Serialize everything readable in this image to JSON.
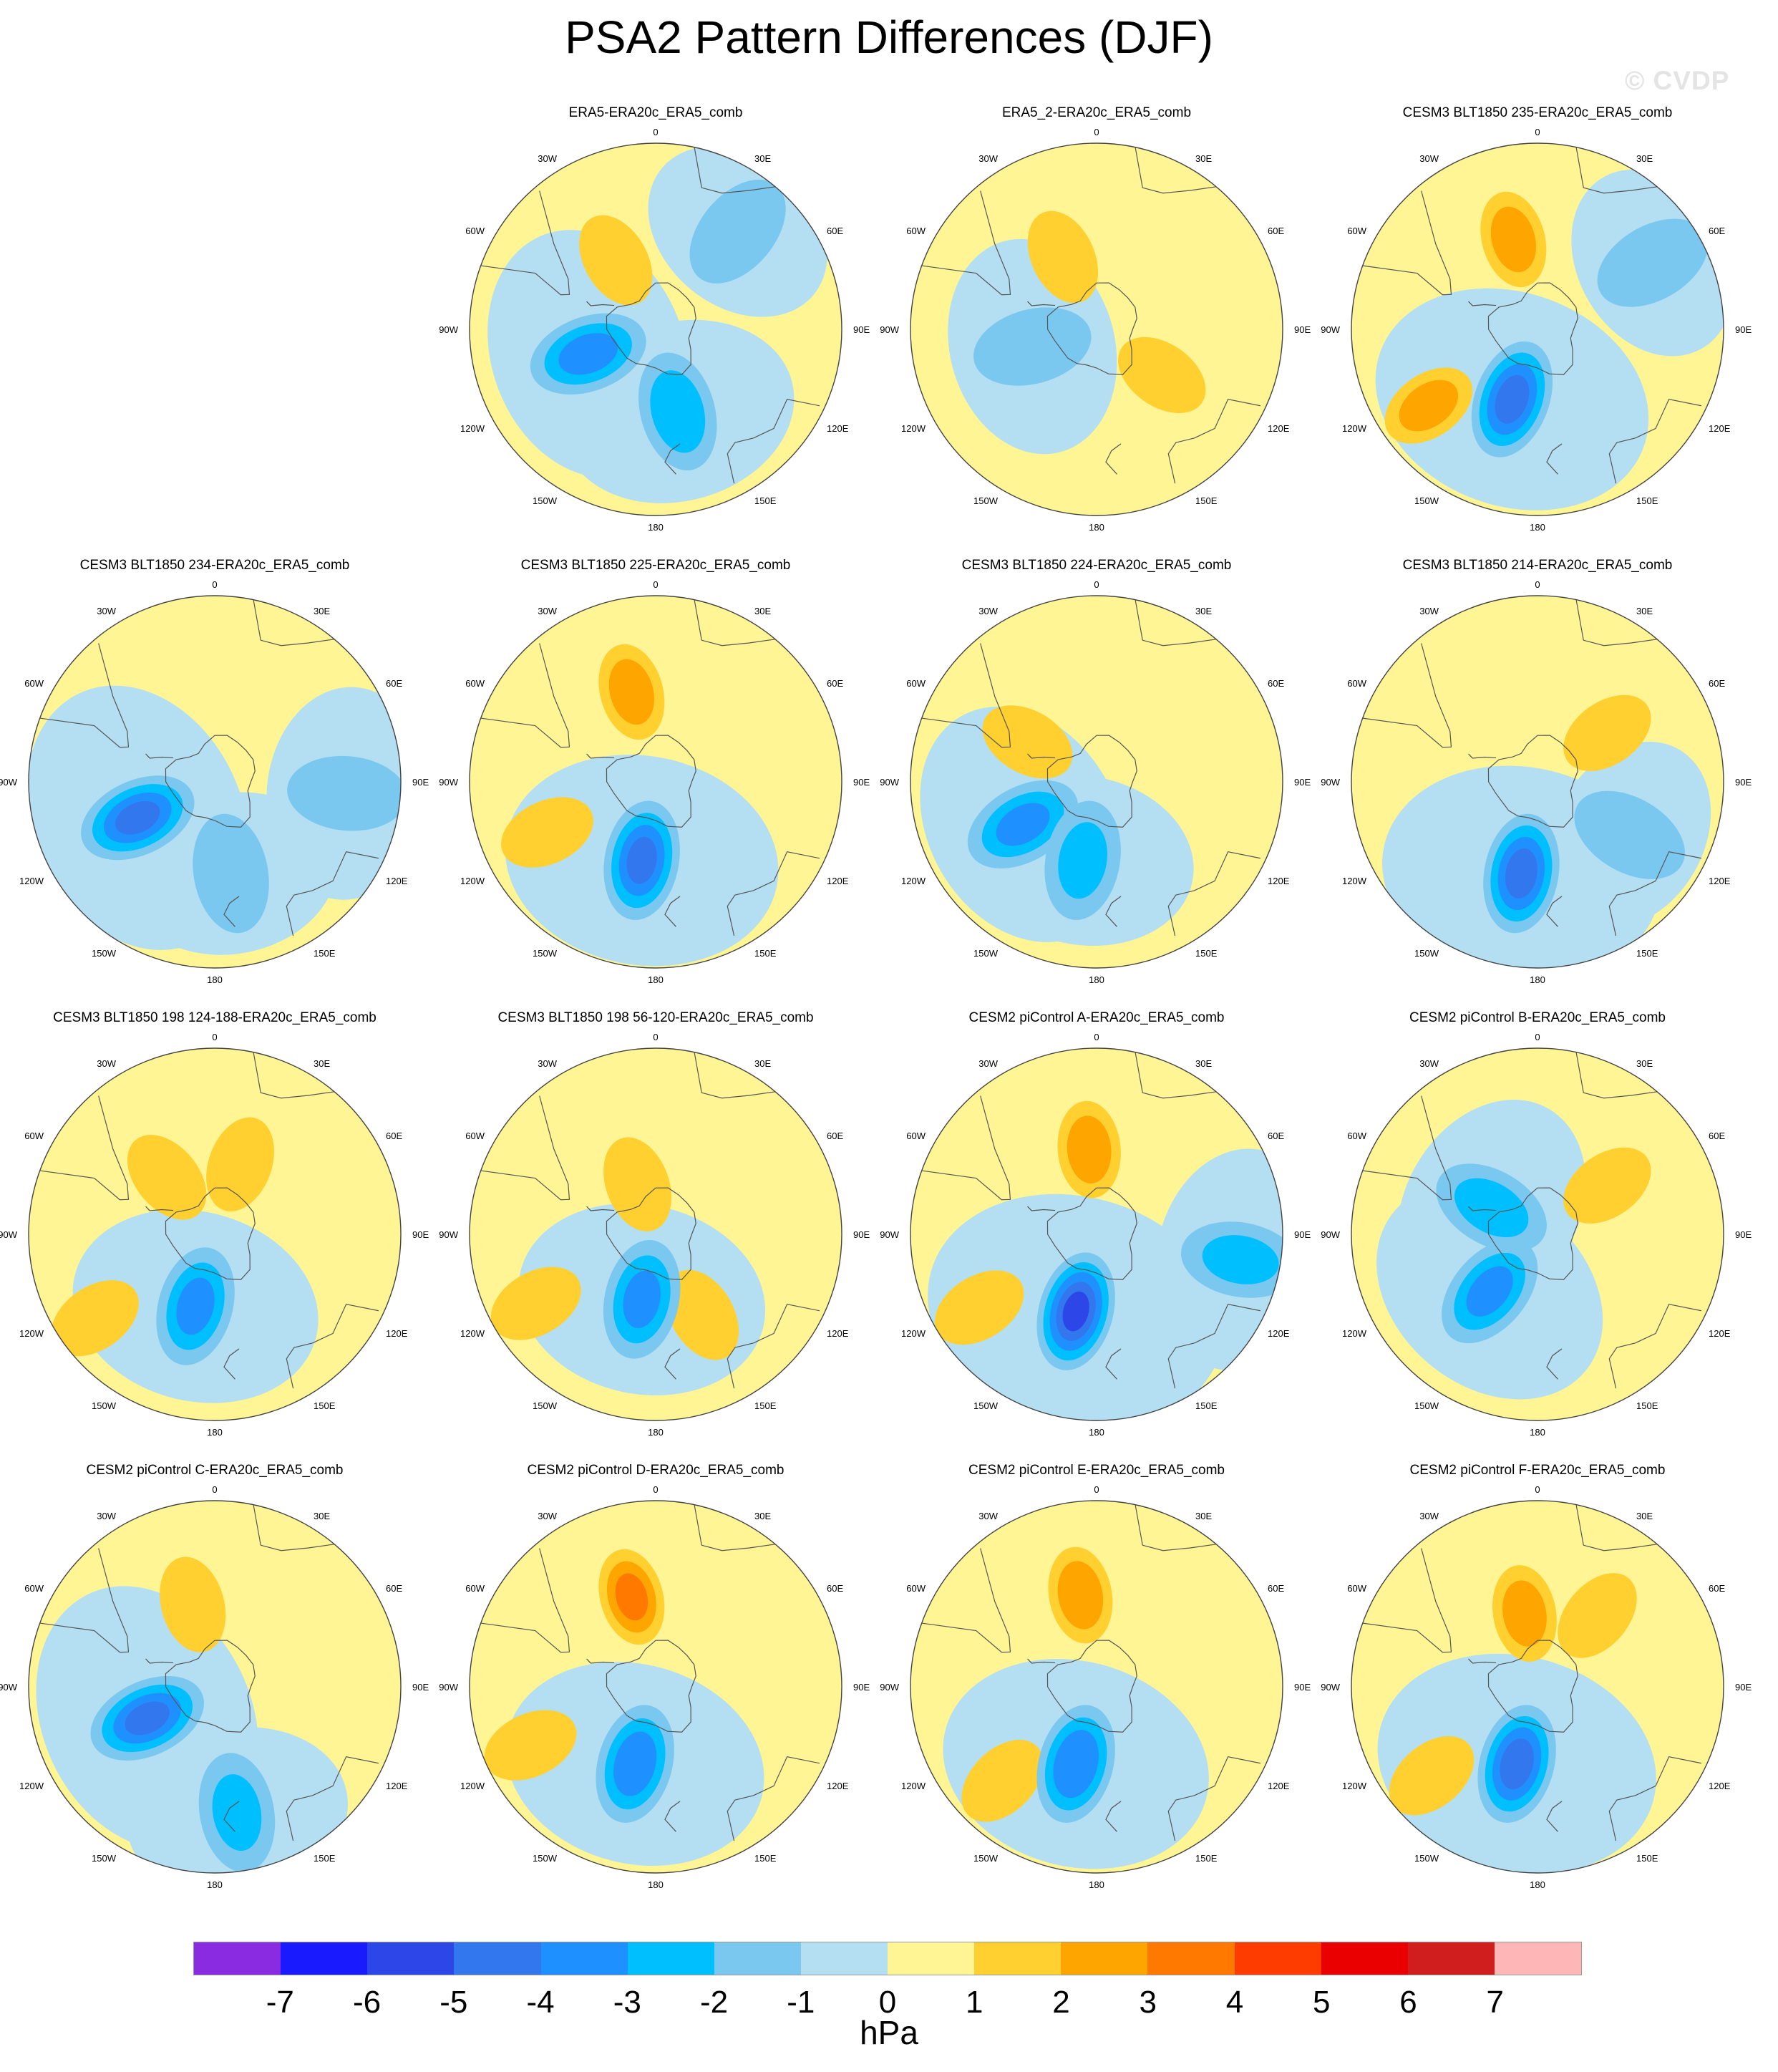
{
  "title": "PSA2 Pattern Differences (DJF)",
  "watermark": "© CVDP",
  "lon_labels": [
    "0",
    "30E",
    "60E",
    "90E",
    "120E",
    "150E",
    "180",
    "150W",
    "120W",
    "90W",
    "60W",
    "30W"
  ],
  "panels": [
    {
      "title": "ERA5-ERA20c_ERA5_comb",
      "blobs": [
        {
          "sign": "+",
          "max": 1.5,
          "lon": 330,
          "lat": 60
        },
        {
          "sign": "-",
          "max": 3.2,
          "lon": 250,
          "lat": 63
        },
        {
          "sign": "-",
          "max": 2.5,
          "lon": 165,
          "lat": 58
        },
        {
          "sign": "-",
          "max": 1,
          "lon": 40,
          "lat": 42
        }
      ]
    },
    {
      "title": "ERA5_2-ERA20c_ERA5_comb",
      "blobs": [
        {
          "sign": "+",
          "max": 1.4,
          "lon": 335,
          "lat": 60
        },
        {
          "sign": "+",
          "max": 1.4,
          "lon": 125,
          "lat": 60
        },
        {
          "sign": "-",
          "max": 1.8,
          "lon": 255,
          "lat": 65
        }
      ]
    },
    {
      "title": "CESM3 BLT1850 235-ERA20c_ERA5_comb",
      "blobs": [
        {
          "sign": "+",
          "max": 2.3,
          "lon": 345,
          "lat": 55
        },
        {
          "sign": "+",
          "max": 2.2,
          "lon": 235,
          "lat": 40
        },
        {
          "sign": "-",
          "max": 4.2,
          "lon": 200,
          "lat": 62
        },
        {
          "sign": "-",
          "max": 1,
          "lon": 60,
          "lat": 40
        }
      ]
    },
    {
      "title": "CESM3 BLT1850 234-ERA20c_ERA5_comb",
      "blobs": [
        {
          "sign": "-",
          "max": 4.0,
          "lon": 245,
          "lat": 58
        },
        {
          "sign": "-",
          "max": 1.6,
          "lon": 170,
          "lat": 55
        },
        {
          "sign": "-",
          "max": 1.6,
          "lon": 95,
          "lat": 40
        }
      ]
    },
    {
      "title": "CESM3 BLT1850 225-ERA20c_ERA5_comb",
      "blobs": [
        {
          "sign": "+",
          "max": 2.3,
          "lon": 345,
          "lat": 55
        },
        {
          "sign": "+",
          "max": 1.4,
          "lon": 245,
          "lat": 45
        },
        {
          "sign": "-",
          "max": 4.0,
          "lon": 190,
          "lat": 60
        }
      ]
    },
    {
      "title": "CESM3 BLT1850 224-ERA20c_ERA5_comb",
      "blobs": [
        {
          "sign": "-",
          "max": 3.0,
          "lon": 240,
          "lat": 58
        },
        {
          "sign": "-",
          "max": 2.0,
          "lon": 190,
          "lat": 60
        },
        {
          "sign": "+",
          "max": 1.2,
          "lon": 300,
          "lat": 60
        }
      ]
    },
    {
      "title": "CESM3 BLT1850 214-ERA20c_ERA5_comb",
      "blobs": [
        {
          "sign": "+",
          "max": 1.5,
          "lon": 55,
          "lat": 58
        },
        {
          "sign": "-",
          "max": 4.2,
          "lon": 190,
          "lat": 55
        },
        {
          "sign": "-",
          "max": 1,
          "lon": 120,
          "lat": 50
        }
      ]
    },
    {
      "title": "CESM3 BLT1850 198 124-188-ERA20c_ERA5_comb",
      "blobs": [
        {
          "sign": "+",
          "max": 1.4,
          "lon": 320,
          "lat": 62
        },
        {
          "sign": "+",
          "max": 1.3,
          "lon": 20,
          "lat": 62
        },
        {
          "sign": "+",
          "max": 1.4,
          "lon": 235,
          "lat": 35
        },
        {
          "sign": "-",
          "max": 3.0,
          "lon": 195,
          "lat": 62
        }
      ]
    },
    {
      "title": "CESM3 BLT1850 198 56-120-ERA20c_ERA5_comb",
      "blobs": [
        {
          "sign": "+",
          "max": 1.3,
          "lon": 240,
          "lat": 38
        },
        {
          "sign": "+",
          "max": 1.2,
          "lon": 150,
          "lat": 55
        },
        {
          "sign": "+",
          "max": 1.1,
          "lon": 340,
          "lat": 70
        },
        {
          "sign": "-",
          "max": 3.0,
          "lon": 192,
          "lat": 65
        }
      ]
    },
    {
      "title": "CESM2 piControl A-ERA20c_ERA5_comb",
      "blobs": [
        {
          "sign": "+",
          "max": 2.4,
          "lon": 355,
          "lat": 58
        },
        {
          "sign": "+",
          "max": 1.4,
          "lon": 238,
          "lat": 38
        },
        {
          "sign": "-",
          "max": 5.0,
          "lon": 195,
          "lat": 60
        },
        {
          "sign": "-",
          "max": 2.0,
          "lon": 100,
          "lat": 35
        }
      ]
    },
    {
      "title": "CESM2 piControl B-ERA20c_ERA5_comb",
      "blobs": [
        {
          "sign": "+",
          "max": 1.4,
          "lon": 55,
          "lat": 58
        },
        {
          "sign": "-",
          "max": 3.0,
          "lon": 220,
          "lat": 62
        },
        {
          "sign": "-",
          "max": 2.2,
          "lon": 300,
          "lat": 70
        }
      ]
    },
    {
      "title": "CESM2 piControl C-ERA20c_ERA5_comb",
      "blobs": [
        {
          "sign": "+",
          "max": 1.3,
          "lon": 345,
          "lat": 58
        },
        {
          "sign": "-",
          "max": 4.0,
          "lon": 245,
          "lat": 62
        },
        {
          "sign": "-",
          "max": 2.0,
          "lon": 170,
          "lat": 42
        }
      ]
    },
    {
      "title": "CESM2 piControl D-ERA20c_ERA5_comb",
      "blobs": [
        {
          "sign": "+",
          "max": 3.0,
          "lon": 345,
          "lat": 55
        },
        {
          "sign": "+",
          "max": 1.5,
          "lon": 245,
          "lat": 38
        },
        {
          "sign": "-",
          "max": 3.5,
          "lon": 195,
          "lat": 60
        }
      ]
    },
    {
      "title": "CESM2 piControl E-ERA20c_ERA5_comb",
      "blobs": [
        {
          "sign": "+",
          "max": 2.5,
          "lon": 350,
          "lat": 55
        },
        {
          "sign": "+",
          "max": 1.4,
          "lon": 225,
          "lat": 40
        },
        {
          "sign": "-",
          "max": 3.8,
          "lon": 195,
          "lat": 60
        }
      ]
    },
    {
      "title": "CESM2 piControl F-ERA20c_ERA5_comb",
      "blobs": [
        {
          "sign": "+",
          "max": 2.3,
          "lon": 350,
          "lat": 62
        },
        {
          "sign": "+",
          "max": 1.3,
          "lon": 40,
          "lat": 55
        },
        {
          "sign": "+",
          "max": 1.4,
          "lon": 230,
          "lat": 38
        },
        {
          "sign": "-",
          "max": 4.3,
          "lon": 195,
          "lat": 60
        }
      ]
    }
  ],
  "colorbar": {
    "units": "hPa",
    "ticks": [
      "-7",
      "-6",
      "-5",
      "-4",
      "-3",
      "-2",
      "-1",
      "0",
      "1",
      "2",
      "3",
      "4",
      "5",
      "6",
      "7"
    ],
    "colors": [
      "#8a2be2",
      "#1a1aff",
      "#2c46e8",
      "#3377ee",
      "#1e90ff",
      "#00bfff",
      "#7ac8f0",
      "#b4def2",
      "#fff595",
      "#ffd030",
      "#ffa500",
      "#ff7800",
      "#ff3c00",
      "#ea0000",
      "#d01e1e",
      "#ffb6b6"
    ]
  }
}
